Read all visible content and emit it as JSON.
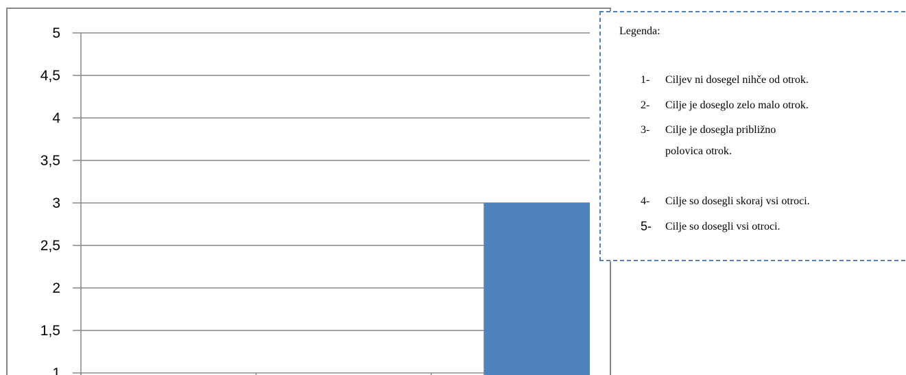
{
  "chart_data": {
    "type": "bar",
    "categories": [
      "",
      "",
      ""
    ],
    "values": [
      null,
      null,
      3
    ],
    "series_color": "#4f81bd",
    "ylim": [
      1,
      5
    ],
    "yticks": [
      "1",
      "1,5",
      "2",
      "2,5",
      "3",
      "3,5",
      "4",
      "4,5",
      "5"
    ],
    "ytick_values": [
      1,
      1.5,
      2,
      2.5,
      3,
      3.5,
      4,
      4.5,
      5
    ],
    "grid": true,
    "legend_placement": "top-right"
  },
  "legend": {
    "title": "Legenda:",
    "items": [
      {
        "num": "1-",
        "text": "Ciljev ni dosegel nihče od otrok."
      },
      {
        "num": "2-",
        "text": "Cilje je doseglo zelo malo otrok."
      },
      {
        "num": "3-",
        "text": "Cilje je dosegla približno polovica otrok."
      },
      {
        "num": "4-",
        "text": "Cilje so dosegli skoraj vsi otroci."
      },
      {
        "num": "5-",
        "text": "Cilje so dosegli vsi otroci."
      }
    ],
    "border_color": "#4f81bd"
  }
}
